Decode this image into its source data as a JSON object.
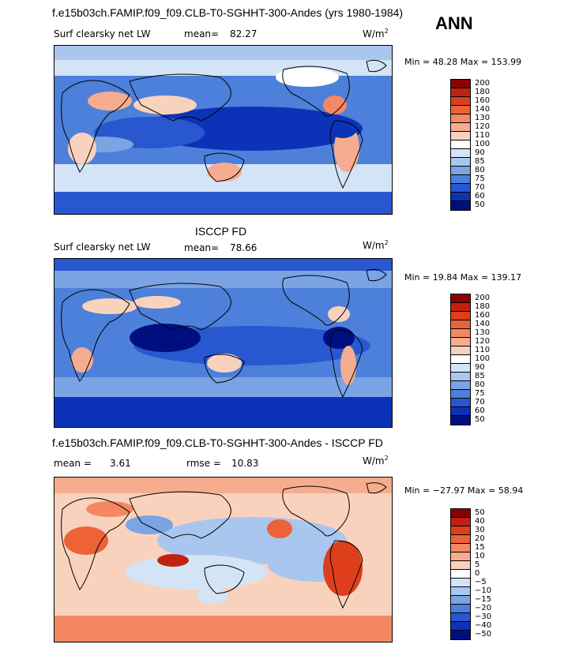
{
  "header": {
    "title": "f.e15b03ch.FAMIP.f09_f09.CLB-T0-SGHHT-300-Andes (yrs 1980-1984)",
    "season": "ANN"
  },
  "panel1": {
    "field": "Surf clearsky net LW",
    "mean_label": "mean=",
    "mean_value": "82.27",
    "units": "W/m",
    "units_exp": "2",
    "minmax": "Min =   48.28 Max =  153.99",
    "levels": [
      "200",
      "180",
      "160",
      "140",
      "130",
      "120",
      "110",
      "100",
      "90",
      "85",
      "80",
      "75",
      "70",
      "60",
      "50"
    ]
  },
  "panel2": {
    "heading": "ISCCP FD",
    "field": "Surf clearsky net LW",
    "mean_label": "mean=",
    "mean_value": "78.66",
    "units": "W/m",
    "units_exp": "2",
    "minmax": "Min =   19.84 Max =  139.17",
    "levels": [
      "200",
      "180",
      "160",
      "140",
      "130",
      "120",
      "110",
      "100",
      "90",
      "85",
      "80",
      "75",
      "70",
      "60",
      "50"
    ]
  },
  "panel3": {
    "heading": "f.e15b03ch.FAMIP.f09_f09.CLB-T0-SGHHT-300-Andes - ISCCP FD",
    "mean_label": "mean =",
    "mean_value": "3.61",
    "rmse_label": "rmse =",
    "rmse_value": "10.83",
    "units": "W/m",
    "units_exp": "2",
    "minmax": "Min = −27.97 Max =   58.94",
    "levels": [
      "50",
      "40",
      "30",
      "20",
      "15",
      "10",
      "5",
      "0",
      "−5",
      "−10",
      "−15",
      "−20",
      "−30",
      "−40",
      "−50"
    ]
  },
  "colors": {
    "abs_scale": [
      "#8b0000",
      "#c1220f",
      "#df3e1d",
      "#ee6238",
      "#f38862",
      "#f6ad8f",
      "#f9d2bd",
      "#ffffff",
      "#d4e4f7",
      "#a8c6ee",
      "#7aa4e4",
      "#4d80da",
      "#2857cf",
      "#0c33b7",
      "#000f80"
    ],
    "diff_scale": [
      "#8b0000",
      "#c1220f",
      "#df3e1d",
      "#ee6238",
      "#f38862",
      "#f6ad8f",
      "#f9d2bd",
      "#ffffff",
      "#d4e4f7",
      "#a8c6ee",
      "#7aa4e4",
      "#4d80da",
      "#2857cf",
      "#0c33b7",
      "#000f80"
    ]
  }
}
